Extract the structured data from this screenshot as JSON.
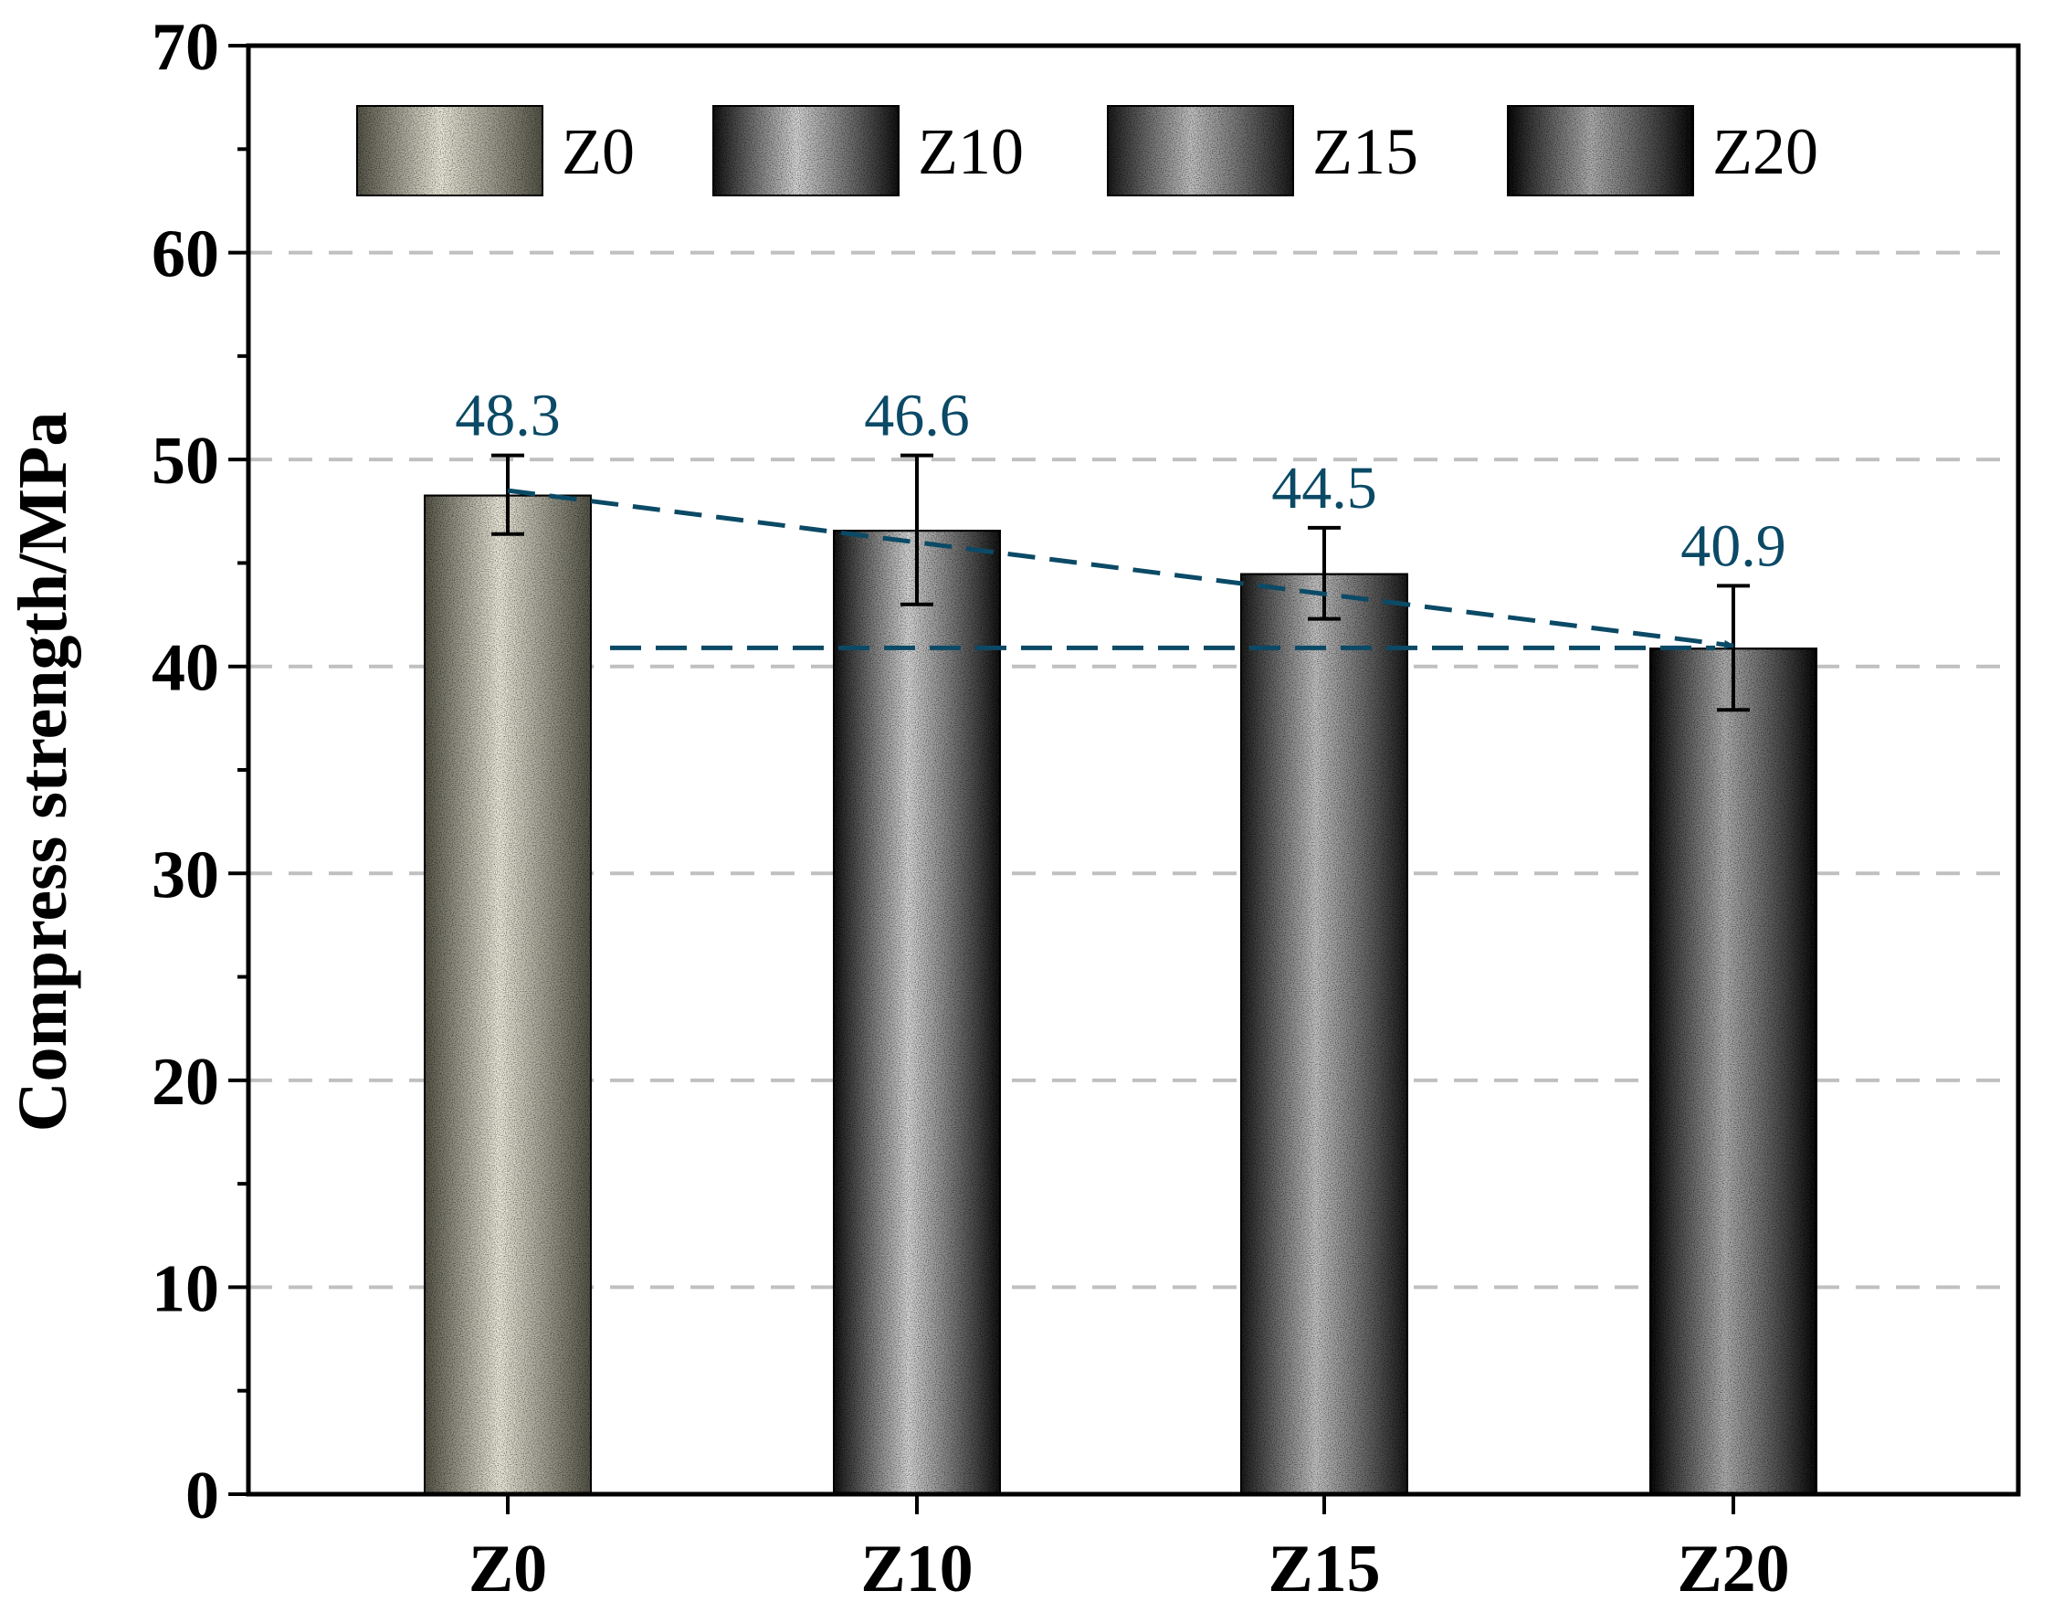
{
  "chart_data": {
    "type": "bar",
    "categories": [
      "Z0",
      "Z10",
      "Z15",
      "Z20"
    ],
    "values": [
      48.3,
      46.6,
      44.5,
      40.9
    ],
    "error_upper": [
      50.2,
      50.2,
      46.7,
      43.9
    ],
    "error_lower": [
      46.4,
      43.0,
      42.3,
      37.9
    ],
    "data_labels": [
      "48.3",
      "46.6",
      "44.5",
      "40.9"
    ],
    "title": "",
    "xlabel": "",
    "ylabel": "Compress strength/MPa",
    "ylim": [
      0,
      70
    ],
    "yticks": [
      0,
      10,
      20,
      30,
      40,
      50,
      60,
      70
    ],
    "ytick_labels": [
      "0",
      "10",
      "20",
      "30",
      "40",
      "50",
      "60",
      "70"
    ],
    "grid": "horizontal-dashed",
    "legend": {
      "placement": "top",
      "entries": [
        "Z0",
        "Z10",
        "Z15",
        "Z20"
      ]
    },
    "trend_line": {
      "from": "Z0",
      "to": "Z20",
      "y_from": 48.5,
      "y_to": 41.0,
      "style": "dashed-arrow"
    },
    "reference_line": {
      "y": 40.9,
      "from": "Z0",
      "to": "Z20",
      "style": "dashed"
    },
    "colors": {
      "annotation": "#0b4a66",
      "grid": "#c0c0c0",
      "bar_light": [
        "#f3f1e2",
        "#dcdcdc",
        "#c8c8c8",
        "#b4b4b4"
      ],
      "bar_dark": [
        "#565548",
        "#141414",
        "#1c1c1c",
        "#0c0c0c"
      ]
    }
  }
}
